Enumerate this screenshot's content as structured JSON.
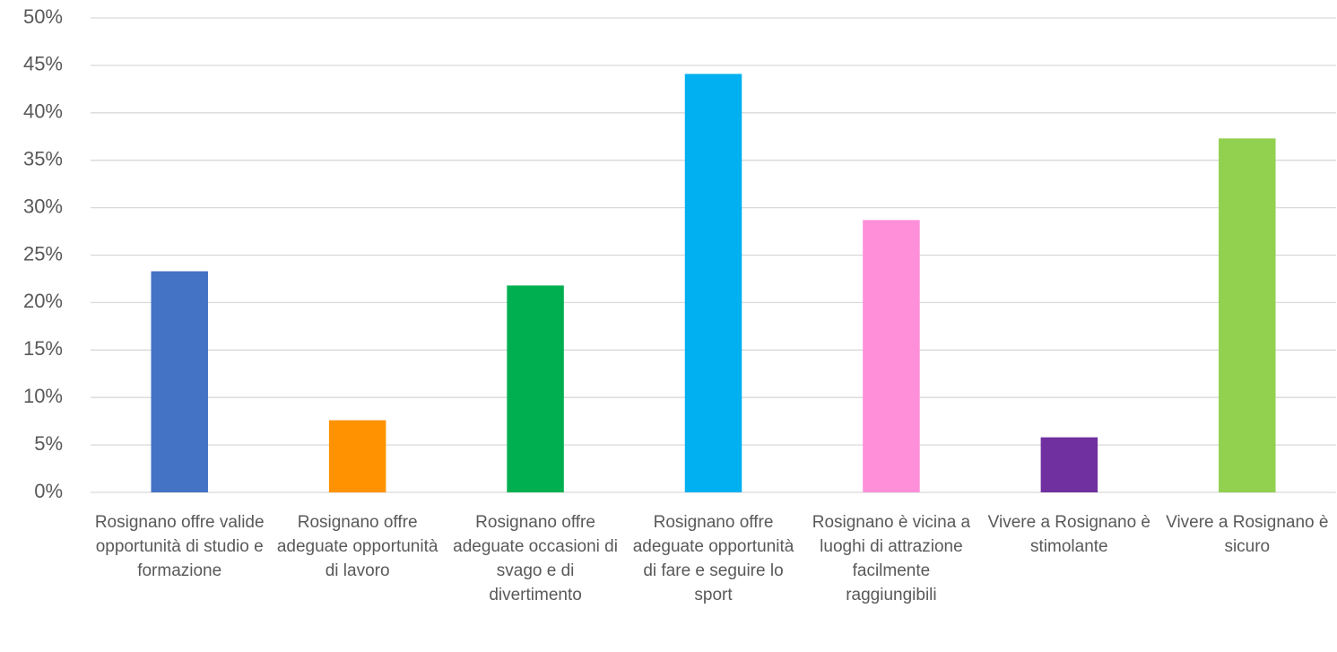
{
  "chart_data": {
    "type": "bar",
    "categories": [
      "Rosignano offre valide opportunità di studio e formazione",
      "Rosignano offre adeguate opportunità di lavoro",
      "Rosignano offre adeguate occasioni di svago e di divertimento",
      "Rosignano offre adeguate opportunità di fare e seguire lo sport",
      "Rosignano è vicina a luoghi di attrazione facilmente raggiungibili",
      "Vivere a Rosignano è stimolante",
      "Vivere a Rosignano è sicuro"
    ],
    "values": [
      23.3,
      7.6,
      21.8,
      44.1,
      28.7,
      5.8,
      37.3
    ],
    "colors": [
      "#4472c4",
      "#ff9200",
      "#00b050",
      "#00b0f0",
      "#ff8fd9",
      "#7030a0",
      "#92d050"
    ],
    "ylim": [
      0,
      50
    ],
    "yticks": [
      {
        "value": 0,
        "label": "0%"
      },
      {
        "value": 5,
        "label": "5%"
      },
      {
        "value": 10,
        "label": "10%"
      },
      {
        "value": 15,
        "label": "15%"
      },
      {
        "value": 20,
        "label": "20%"
      },
      {
        "value": 25,
        "label": "25%"
      },
      {
        "value": 30,
        "label": "30%"
      },
      {
        "value": 35,
        "label": "35%"
      },
      {
        "value": 40,
        "label": "40%"
      },
      {
        "value": 45,
        "label": "45%"
      },
      {
        "value": 50,
        "label": "50%"
      }
    ],
    "grid": true
  }
}
